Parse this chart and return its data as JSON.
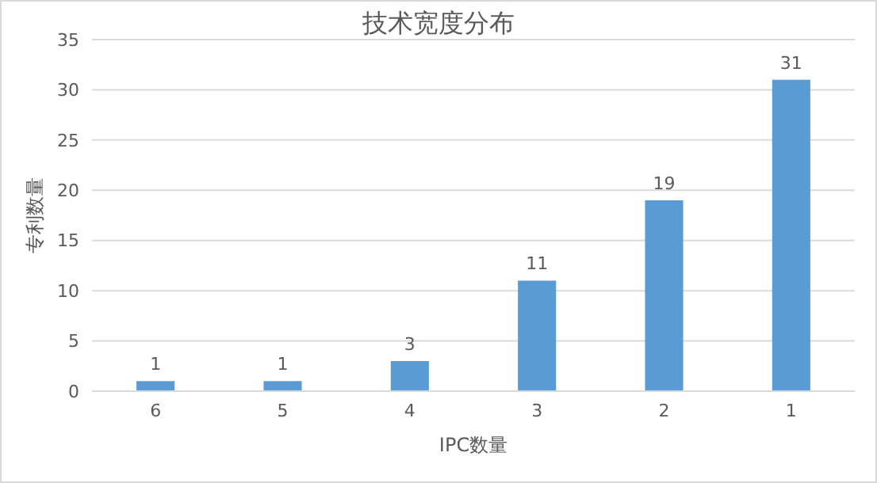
{
  "chart_data": {
    "type": "bar",
    "title": "技术宽度分布",
    "xlabel": "IPC数量",
    "ylabel": "专利数量",
    "categories": [
      "6",
      "5",
      "4",
      "3",
      "2",
      "1"
    ],
    "values": [
      1,
      1,
      3,
      11,
      19,
      31
    ],
    "color": "#5b9bd5",
    "ylim": [
      0,
      35
    ],
    "yticks": [
      0,
      5,
      10,
      15,
      20,
      25,
      30,
      35
    ],
    "grid": "y",
    "data_labels": true
  }
}
